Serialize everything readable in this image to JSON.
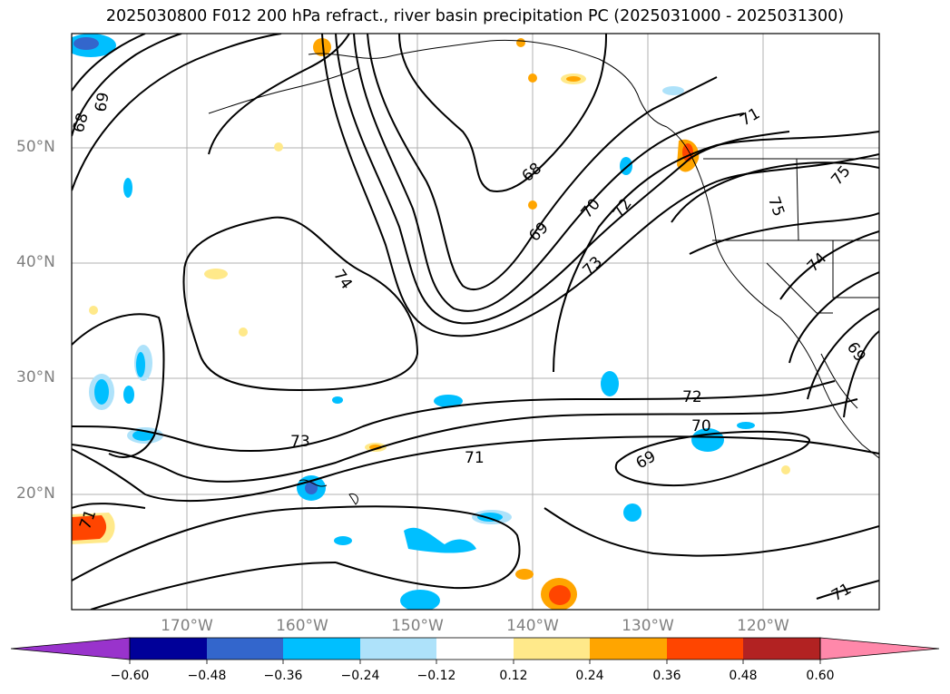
{
  "title": "2025030800 F012 200 hPa refract., river basin precipitation PC (2025031000 - 2025031300)",
  "latitude_labels": [
    "50°N",
    "40°N",
    "30°N",
    "20°N"
  ],
  "longitude_labels": [
    "170°W",
    "160°W",
    "150°W",
    "140°W",
    "130°W",
    "120°W"
  ],
  "contour_labels": [
    "68",
    "69",
    "68",
    "69",
    "70",
    "72",
    "73",
    "74",
    "71",
    "75",
    "75",
    "74",
    "69",
    "73",
    "71",
    "72",
    "70",
    "69",
    "71",
    "71"
  ],
  "colorbar": {
    "tick_labels": [
      "−0.60",
      "−0.48",
      "−0.36",
      "−0.24",
      "−0.12",
      "0.12",
      "0.24",
      "0.36",
      "0.48",
      "0.60"
    ],
    "colors": [
      "#9933cc",
      "#000099",
      "#3366cc",
      "#00bfff",
      "#aee2fa",
      "#ffffff",
      "#ffe98a",
      "#ffa500",
      "#ff4500",
      "#b22222",
      "#ff88aa"
    ]
  }
}
